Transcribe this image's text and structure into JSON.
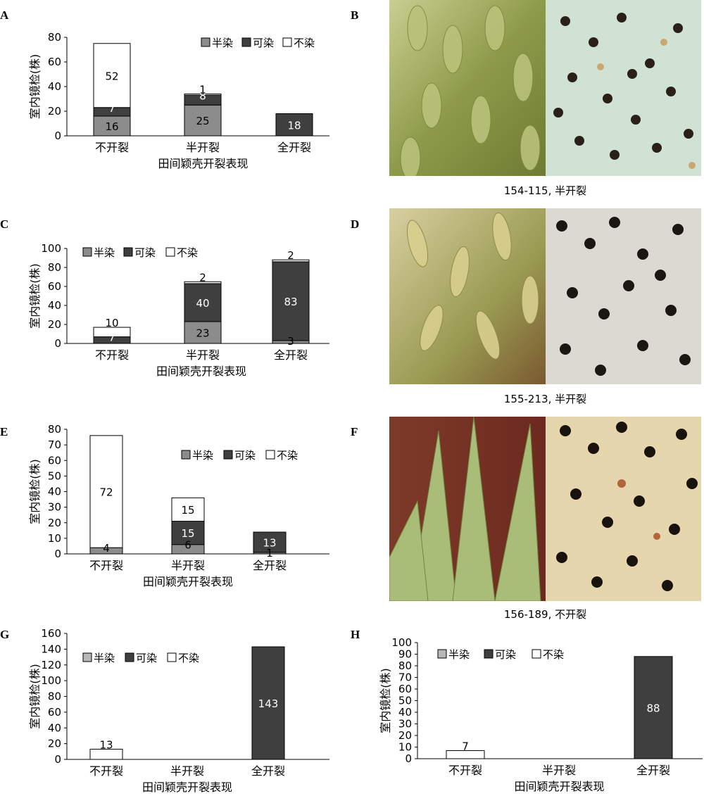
{
  "letters": [
    "A",
    "B",
    "C",
    "D",
    "E",
    "F",
    "G",
    "H"
  ],
  "captions": [
    "154-115, 半开裂",
    "155-213, 半开裂",
    "156-189, 不开裂"
  ],
  "colors": {
    "semi": "#8c8c8c",
    "stain": "#3f3f3f",
    "nostain": "#ffffff",
    "semi_light": "#b8b8b8"
  },
  "chart_data": [
    {
      "type": "bar",
      "stacked": true,
      "categories": [
        "不开裂",
        "半开裂",
        "全开裂"
      ],
      "series": [
        {
          "name": "半染",
          "values": [
            16,
            25,
            0
          ]
        },
        {
          "name": "可染",
          "values": [
            7,
            8,
            18
          ]
        },
        {
          "name": "不染",
          "values": [
            52,
            1,
            0
          ]
        }
      ],
      "labels": [
        [
          "16",
          "7",
          "52"
        ],
        [
          "25",
          "8",
          "1"
        ],
        [
          "",
          "18",
          ""
        ]
      ],
      "xlabel": "田间颖壳开裂表现",
      "ylabel": "室内镜检(株)",
      "ylim": [
        0,
        80
      ],
      "yticks": [
        0,
        20,
        40,
        60,
        80
      ],
      "legend": "top-right",
      "grid": false
    },
    {
      "type": "bar",
      "stacked": true,
      "categories": [
        "不开裂",
        "半开裂",
        "全开裂"
      ],
      "series": [
        {
          "name": "半染",
          "values": [
            0,
            23,
            3
          ]
        },
        {
          "name": "可染",
          "values": [
            7,
            40,
            83
          ]
        },
        {
          "name": "不染",
          "values": [
            10,
            2,
            2
          ]
        }
      ],
      "labels": [
        [
          "",
          "7",
          "10"
        ],
        [
          "23",
          "40",
          "2"
        ],
        [
          "3",
          "83",
          "2"
        ]
      ],
      "xlabel": "田间颖壳开裂表现",
      "ylabel": "室内镜检(株)",
      "ylim": [
        0,
        100
      ],
      "yticks": [
        0,
        20,
        40,
        60,
        80,
        100
      ],
      "legend": "top-left",
      "grid": false
    },
    {
      "type": "bar",
      "stacked": true,
      "categories": [
        "不开裂",
        "半开裂",
        "全开裂"
      ],
      "series": [
        {
          "name": "半染",
          "values": [
            4,
            6,
            1
          ]
        },
        {
          "name": "可染",
          "values": [
            0,
            15,
            13
          ]
        },
        {
          "name": "不染",
          "values": [
            72,
            15,
            0
          ]
        }
      ],
      "labels": [
        [
          "4",
          "",
          "72"
        ],
        [
          "6",
          "15",
          "15"
        ],
        [
          "1",
          "13",
          ""
        ]
      ],
      "xlabel": "田间颖壳开裂表现",
      "ylabel": "室内镜检(株)",
      "ylim": [
        0,
        80
      ],
      "yticks": [
        0,
        10,
        20,
        30,
        40,
        50,
        60,
        70,
        80
      ],
      "legend": "right",
      "grid": false
    },
    {
      "type": "bar",
      "stacked": true,
      "categories": [
        "不开裂",
        "半开裂",
        "全开裂"
      ],
      "series": [
        {
          "name": "半染",
          "values": [
            0,
            0,
            0
          ]
        },
        {
          "name": "可染",
          "values": [
            0,
            0,
            143
          ]
        },
        {
          "name": "不染",
          "values": [
            13,
            0,
            0
          ]
        }
      ],
      "labels": [
        [
          "",
          "",
          "13"
        ],
        [
          "",
          "",
          ""
        ],
        [
          "",
          "143",
          ""
        ]
      ],
      "xlabel": "田间颖壳开裂表现",
      "ylabel": "室内镜检(株)",
      "ylim": [
        0,
        160
      ],
      "yticks": [
        0,
        20,
        40,
        60,
        80,
        100,
        120,
        140,
        160
      ],
      "legend": "top-left",
      "grid": false
    },
    {
      "type": "bar",
      "stacked": true,
      "categories": [
        "不开裂",
        "半开裂",
        "全开裂"
      ],
      "series": [
        {
          "name": "半染",
          "values": [
            0,
            0,
            0
          ]
        },
        {
          "name": "可染",
          "values": [
            0,
            0,
            88
          ]
        },
        {
          "name": "不染",
          "values": [
            7,
            0,
            0
          ]
        }
      ],
      "labels": [
        [
          "",
          "",
          "7"
        ],
        [
          "",
          "",
          ""
        ],
        [
          "",
          "88",
          ""
        ]
      ],
      "xlabel": "田间颖壳开裂表现",
      "ylabel": "室内镜检(株)",
      "ylim": [
        0,
        100
      ],
      "yticks": [
        0,
        10,
        20,
        30,
        40,
        50,
        60,
        70,
        80,
        90,
        100
      ],
      "legend": "top-left",
      "grid": false
    }
  ]
}
